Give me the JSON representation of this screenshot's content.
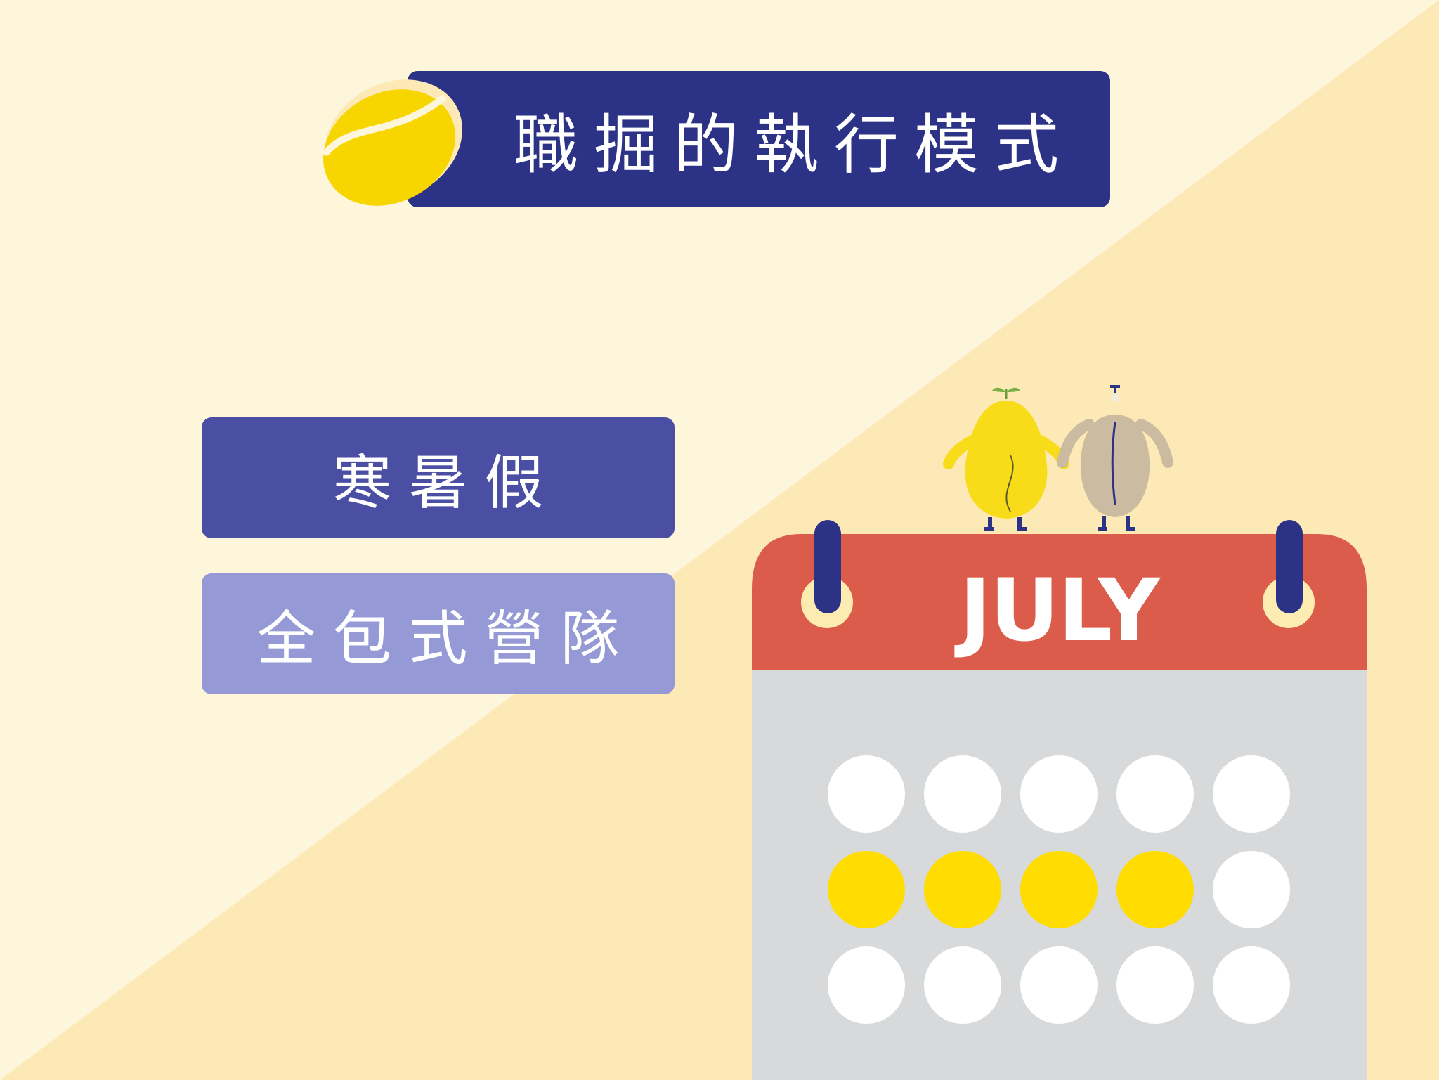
{
  "title": "職掘的執行模式",
  "categories": [
    {
      "label": "寒暑假"
    },
    {
      "label": "全包式營隊"
    }
  ],
  "calendar": {
    "month": "JULY",
    "rows": [
      [
        "white",
        "white",
        "white",
        "white",
        "white"
      ],
      [
        "yellow",
        "yellow",
        "yellow",
        "yellow",
        "white"
      ],
      [
        "white",
        "white",
        "white",
        "white",
        "white"
      ]
    ]
  },
  "colors": {
    "background_light": "#fdf6da",
    "background_diagonal": "#fde9b6",
    "navy": "#2c3285",
    "button_primary": "#4a4fa3",
    "button_secondary": "#9599d5",
    "calendar_header": "#db5c4b",
    "calendar_body": "#d8d9da",
    "dot_yellow": "#ffdd00",
    "dot_white": "#ffffff"
  },
  "icons": {
    "logo": "coffee-bean-icon",
    "characters": [
      "bean-sprout-character",
      "bean-character"
    ]
  }
}
